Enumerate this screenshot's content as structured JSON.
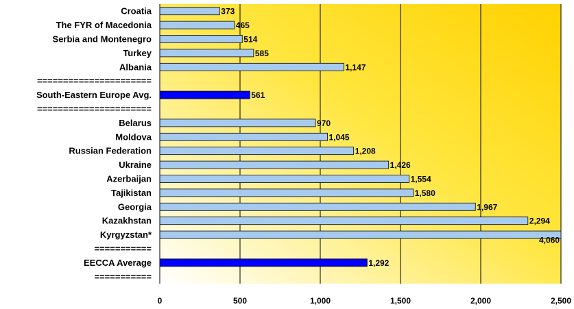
{
  "chart_data": {
    "type": "bar",
    "orientation": "horizontal",
    "categories": [
      "Croatia",
      "The FYR of Macedonia",
      "Serbia and Montenegro",
      "Turkey",
      "Albania",
      "======================",
      "South-Eastern Europe  Avg.",
      "======================",
      "Belarus",
      "Moldova",
      "Russian Federation",
      "Ukraine",
      "Azerbaijan",
      "Tajikistan",
      "Georgia",
      "Kazakhstan",
      "Kyrgyzstan*",
      "===========",
      "EECCA Average",
      "==========="
    ],
    "values": [
      373,
      465,
      514,
      585,
      1147,
      null,
      561,
      null,
      970,
      1045,
      1208,
      1426,
      1554,
      1580,
      1967,
      2294,
      4060,
      null,
      1292,
      null
    ],
    "value_labels": [
      "373",
      "465",
      "514",
      "585",
      "1,147",
      "",
      "561",
      "",
      "970",
      "1,045",
      "1,208",
      "1,426",
      "1,554",
      "1,580",
      "1,967",
      "2,294",
      "4,060",
      "",
      "1,292",
      ""
    ],
    "highlight": [
      false,
      false,
      false,
      false,
      false,
      false,
      true,
      false,
      false,
      false,
      false,
      false,
      false,
      false,
      false,
      false,
      false,
      false,
      true,
      false
    ],
    "x_ticks": [
      0,
      500,
      1000,
      1500,
      2000,
      2500
    ],
    "x_tick_labels": [
      "0",
      "500",
      "1,000",
      "1,500",
      "2,000",
      "2,500"
    ],
    "xlim": [
      0,
      2500
    ],
    "grid": true,
    "title": "",
    "xlabel": "",
    "ylabel": "",
    "colors": {
      "bar": "#a6caf0",
      "highlight_bar": "#0000ff",
      "bar_outline": "#000000",
      "plot_bg_top": "#ffe000",
      "plot_bg_bottom": "#ffffff"
    }
  }
}
